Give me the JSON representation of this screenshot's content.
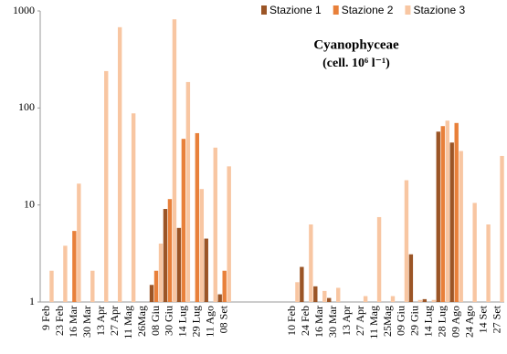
{
  "chart_data": {
    "type": "bar",
    "title": "Cyanophyceae",
    "subtitle": "(cell. 10⁶ l⁻¹)",
    "categories": [
      "9 Feb",
      "23 Feb",
      "16 Mar",
      "30 Mar",
      "13 Apr",
      "27 Apr",
      "11 Mag",
      "26Mag",
      "08 Giu",
      "30 Giu",
      "14 Lug",
      "29 Lug",
      "11 Ago",
      "08 Set",
      null,
      null,
      null,
      null,
      "10 Feb",
      "24 Feb",
      "16 Mar",
      "30 Mar",
      "13 Apr",
      "27 Apr",
      "11 Mag",
      "25Mag",
      "09 Giu",
      "29 Giu",
      "14 Lug",
      "28 Lug",
      "09 Ago",
      "24 Ago",
      "14 Set",
      "27 Set"
    ],
    "series": [
      {
        "name": "Stazione 1",
        "color": "#9b5526",
        "values": [
          null,
          null,
          null,
          null,
          null,
          null,
          null,
          null,
          1.5,
          9.1,
          5.8,
          null,
          4.5,
          1.2,
          null,
          null,
          null,
          null,
          null,
          2.3,
          1.45,
          1.1,
          null,
          null,
          null,
          null,
          null,
          3.1,
          1.07,
          57,
          44,
          null,
          null,
          null
        ]
      },
      {
        "name": "Stazione 2",
        "color": "#e8803a",
        "values": [
          null,
          null,
          5.4,
          null,
          null,
          null,
          null,
          null,
          2.1,
          11.5,
          48,
          55,
          null,
          2.1,
          null,
          null,
          null,
          null,
          null,
          null,
          null,
          null,
          null,
          null,
          null,
          null,
          null,
          null,
          null,
          65,
          70,
          null,
          null,
          null
        ]
      },
      {
        "name": "Stazione 3",
        "color": "#f8c6a2",
        "values": [
          2.1,
          3.8,
          16.6,
          2.1,
          240,
          680,
          88,
          null,
          4,
          820,
          185,
          14.6,
          39,
          25,
          null,
          null,
          null,
          null,
          1.6,
          6.3,
          1.3,
          1.4,
          null,
          1.15,
          7.5,
          1.15,
          18,
          1.05,
          1.05,
          74,
          36,
          10.5,
          6.3,
          32
        ]
      }
    ],
    "ylim": [
      1,
      1000
    ],
    "yticks": [
      1,
      10,
      100,
      1000
    ],
    "log_y": true,
    "grid": false,
    "legend": "top-right"
  }
}
